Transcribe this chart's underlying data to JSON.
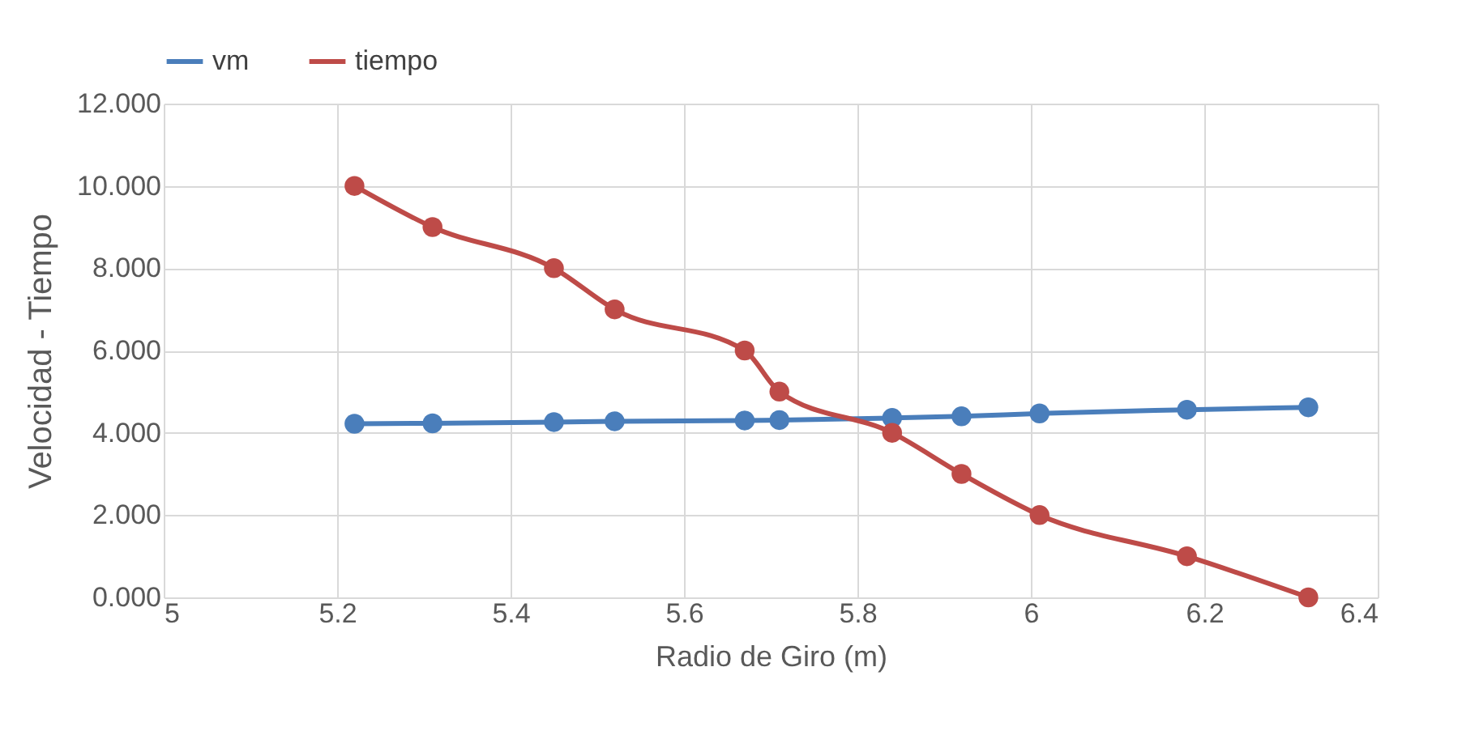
{
  "chart_data": {
    "type": "line",
    "xlabel": "Radio de Giro (m)",
    "ylabel": "Velocidad - Tiempo",
    "x": [
      5.22,
      5.31,
      5.45,
      5.52,
      5.67,
      5.71,
      5.84,
      5.92,
      6.01,
      6.18,
      6.32
    ],
    "series": [
      {
        "name": "vm",
        "color": "#4a7ebb",
        "values": [
          4.22,
          4.23,
          4.26,
          4.28,
          4.3,
          4.31,
          4.36,
          4.4,
          4.47,
          4.56,
          4.62
        ]
      },
      {
        "name": "tiempo",
        "color": "#be4b48",
        "values": [
          10,
          9,
          8,
          7,
          6,
          5,
          4,
          3,
          2,
          1,
          0
        ]
      }
    ],
    "xlim": [
      5,
      6.4
    ],
    "xticks": [
      5,
      5.2,
      5.4,
      5.6,
      5.8,
      6,
      6.2,
      6.4
    ],
    "ylim": [
      0,
      12
    ],
    "yticks": [
      {
        "value": 0,
        "label": "0.000"
      },
      {
        "value": 2,
        "label": "2.000"
      },
      {
        "value": 4,
        "label": "4.000"
      },
      {
        "value": 6,
        "label": "6.000"
      },
      {
        "value": 8,
        "label": "8.000"
      },
      {
        "value": 10,
        "label": "10.000"
      },
      {
        "value": 12,
        "label": "12.000"
      }
    ],
    "grid": true,
    "legend": "top",
    "marker": "circle",
    "line_style": "solid"
  }
}
